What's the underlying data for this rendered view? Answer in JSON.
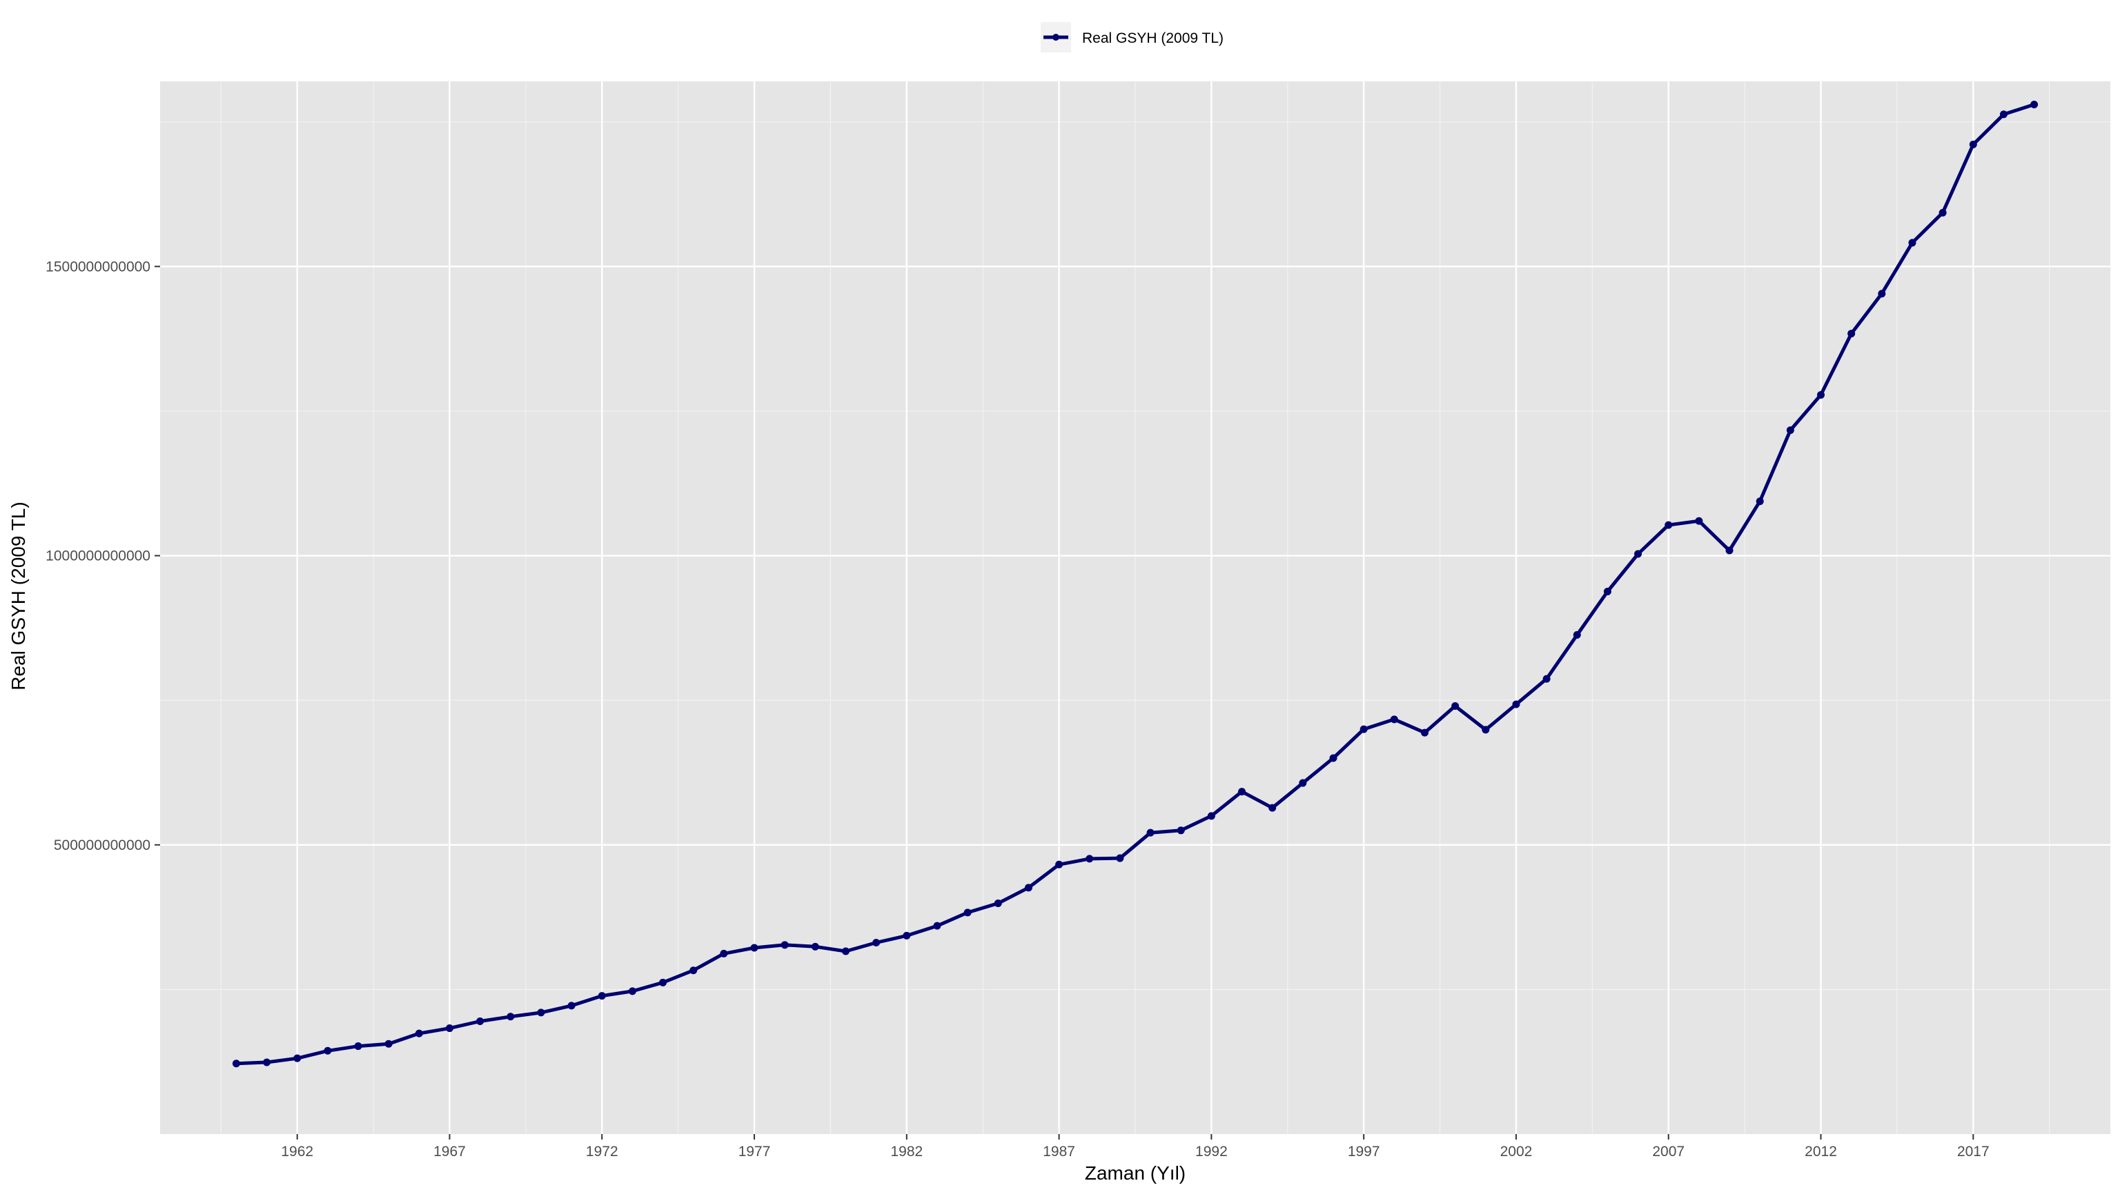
{
  "chart_data": {
    "type": "line",
    "xlabel": "Zaman (Yıl)",
    "ylabel": "Real GSYH (2009 TL)",
    "xlim": [
      1957.5,
      2021.5
    ],
    "ylim": [
      0,
      1820000000000
    ],
    "x_ticks": [
      1962,
      1967,
      1972,
      1977,
      1982,
      1987,
      1992,
      1997,
      2002,
      2007,
      2012,
      2017
    ],
    "x_tick_labels": [
      "1962",
      "1967",
      "1972",
      "1977",
      "1982",
      "1987",
      "1992",
      "1997",
      "2002",
      "2007",
      "2012",
      "2017"
    ],
    "y_ticks": [
      500000000000,
      1000000000000,
      1500000000000
    ],
    "y_tick_labels": [
      "500000000000",
      "1000000000000",
      "1500000000000"
    ],
    "grid": true,
    "legend_position": "top",
    "colors": {
      "line": "#000070",
      "panel": "#e5e5e5",
      "grid": "#ffffff"
    },
    "series": [
      {
        "name": "Real GSYH (2009 TL)",
        "x": [
          1960,
          1961,
          1962,
          1963,
          1964,
          1965,
          1966,
          1967,
          1968,
          1969,
          1970,
          1971,
          1972,
          1973,
          1974,
          1975,
          1976,
          1977,
          1978,
          1979,
          1980,
          1981,
          1982,
          1983,
          1984,
          1985,
          1986,
          1987,
          1988,
          1989,
          1990,
          1991,
          1992,
          1993,
          1994,
          1995,
          1996,
          1997,
          1998,
          1999,
          2000,
          2001,
          2002,
          2003,
          2004,
          2005,
          2006,
          2007,
          2008,
          2009,
          2010,
          2011,
          2012,
          2013,
          2014,
          2015,
          2016,
          2017,
          2018,
          2019
        ],
        "values": [
          122000000000,
          124000000000,
          131000000000,
          144000000000,
          152000000000,
          156000000000,
          174000000000,
          183000000000,
          195000000000,
          203000000000,
          210000000000,
          222000000000,
          239000000000,
          247000000000,
          262000000000,
          283000000000,
          312000000000,
          322000000000,
          327000000000,
          324000000000,
          316000000000,
          331000000000,
          343000000000,
          360000000000,
          383000000000,
          399000000000,
          426000000000,
          466000000000,
          476000000000,
          477000000000,
          521000000000,
          525000000000,
          550000000000,
          592000000000,
          564000000000,
          607000000000,
          650000000000,
          700000000000,
          717000000000,
          694000000000,
          740000000000,
          699000000000,
          743000000000,
          787000000000,
          863000000000,
          938000000000,
          1003000000000,
          1053000000000,
          1060000000000,
          1009000000000,
          1094000000000,
          1217000000000,
          1278000000000,
          1384000000000,
          1453000000000,
          1541000000000,
          1593000000000,
          1711000000000,
          1763000000000,
          1780000000000
        ]
      }
    ]
  }
}
